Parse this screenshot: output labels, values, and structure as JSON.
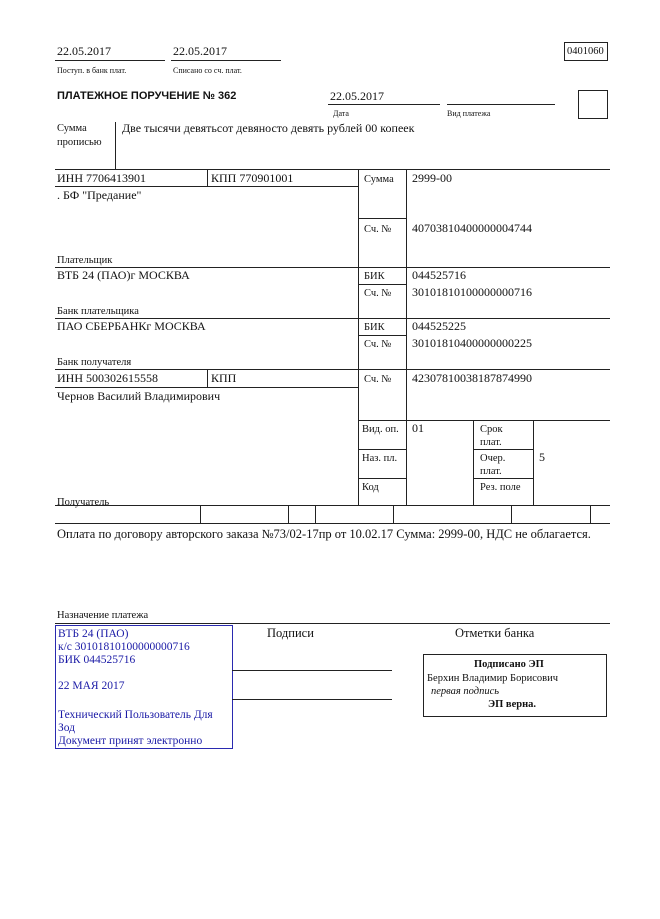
{
  "header": {
    "received_date": "22.05.2017",
    "received_label": "Поступ. в банк плат.",
    "debited_date": "22.05.2017",
    "debited_label": "Списано со сч. плат.",
    "form_code": "0401060"
  },
  "title": "ПЛАТЕЖНОЕ ПОРУЧЕНИЕ № 362",
  "date": {
    "value": "22.05.2017",
    "label": "Дата"
  },
  "payment_type": {
    "value": "",
    "label": "Вид платежа"
  },
  "amount_words": {
    "label1": "Сумма",
    "label2": "прописью",
    "value": "Две тысячи девятьсот девяносто девять рублей 00 копеек"
  },
  "payer": {
    "inn": "ИНН 7706413901",
    "kpp": "КПП 770901001",
    "name": ". БФ \"Предание\"",
    "label": "Плательщик",
    "amount_label": "Сумма",
    "amount": "2999-00",
    "account_label": "Сч. №",
    "account": "40703810400000004744"
  },
  "payer_bank": {
    "name": "ВТБ 24 (ПАО)г МОСКВА",
    "label": "Банк плательщика",
    "bik_label": "БИК",
    "bik": "044525716",
    "account_label": "Сч. №",
    "account": "30101810100000000716"
  },
  "payee_bank": {
    "name": "ПАО СБЕРБАНКг МОСКВА",
    "label": "Банк получателя",
    "bik_label": "БИК",
    "bik": "044525225",
    "account_label": "Сч. №",
    "account": "30101810400000000225"
  },
  "payee": {
    "inn": "ИНН 500302615558",
    "kpp": "КПП",
    "name": "Чернов Василий Владимирович",
    "label": "Получатель",
    "account_label": "Сч. №",
    "account": "42307810038187874990"
  },
  "codes": {
    "op_type_label": "Вид. оп.",
    "op_type": "01",
    "purpose_label": "Наз. пл.",
    "code_label": "Код",
    "term_label1": "Срок",
    "term_label2": "плат.",
    "priority_label1": "Очер.",
    "priority_label2": "плат.",
    "priority": "5",
    "reserve_label": "Рез. поле"
  },
  "purpose": {
    "text": "Оплата по договору авторского заказа №73/02-17пр от 10.02.17 Сумма: 2999-00, НДС не облагается.",
    "label": "Назначение платежа"
  },
  "bank_stamp": {
    "lines": [
      "ВТБ 24 (ПАО)",
      "к/с 30101810100000000716",
      "БИК 044525716",
      "22 МАЯ 2017",
      "Технический Пользователь Для",
      "Зод",
      "Документ принят электронно"
    ]
  },
  "signatures_label": "Подписи",
  "bank_marks_label": "Отметки банка",
  "esign": {
    "title": "Подписано ЭП",
    "signer": "Берхин Владимир Борисович",
    "role": "первая подпись",
    "status": "ЭП верна."
  }
}
